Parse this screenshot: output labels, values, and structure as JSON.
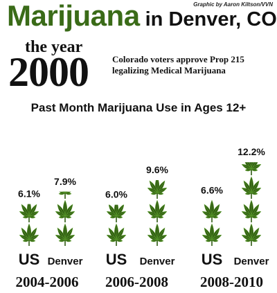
{
  "credit": "Graphic by Aaron Kiltson/VVN",
  "headline": {
    "brand": "Marijuana",
    "rest": " in Denver, CO"
  },
  "event": {
    "lead": "the year",
    "year": "2000",
    "line1": "Colorado voters approve Prop 215",
    "line2": "legalizing Medical Marijuana"
  },
  "colors": {
    "brand": "#3a6b18",
    "leaf_dark": "#2f5a12",
    "leaf_light": "#5a9a2c",
    "text": "#111111"
  },
  "icon": "cannabis-leaf-icon",
  "chart_data": {
    "type": "bar",
    "title": "Past Month Marijuana Use in Ages 12+",
    "categories": [
      "2004-2006",
      "2006-2008",
      "2008-2010"
    ],
    "group_labels": [
      "US",
      "Denver"
    ],
    "unit": "%",
    "series": [
      {
        "name": "US",
        "values": [
          6.1,
          6.0,
          6.6
        ],
        "labels": [
          "6.1%",
          "6.0%",
          "6.6%"
        ]
      },
      {
        "name": "Denver",
        "values": [
          7.9,
          9.6,
          12.2
        ],
        "labels": [
          "7.9%",
          "9.6%",
          "12.2%"
        ]
      }
    ],
    "grid": false,
    "legend": "none"
  }
}
